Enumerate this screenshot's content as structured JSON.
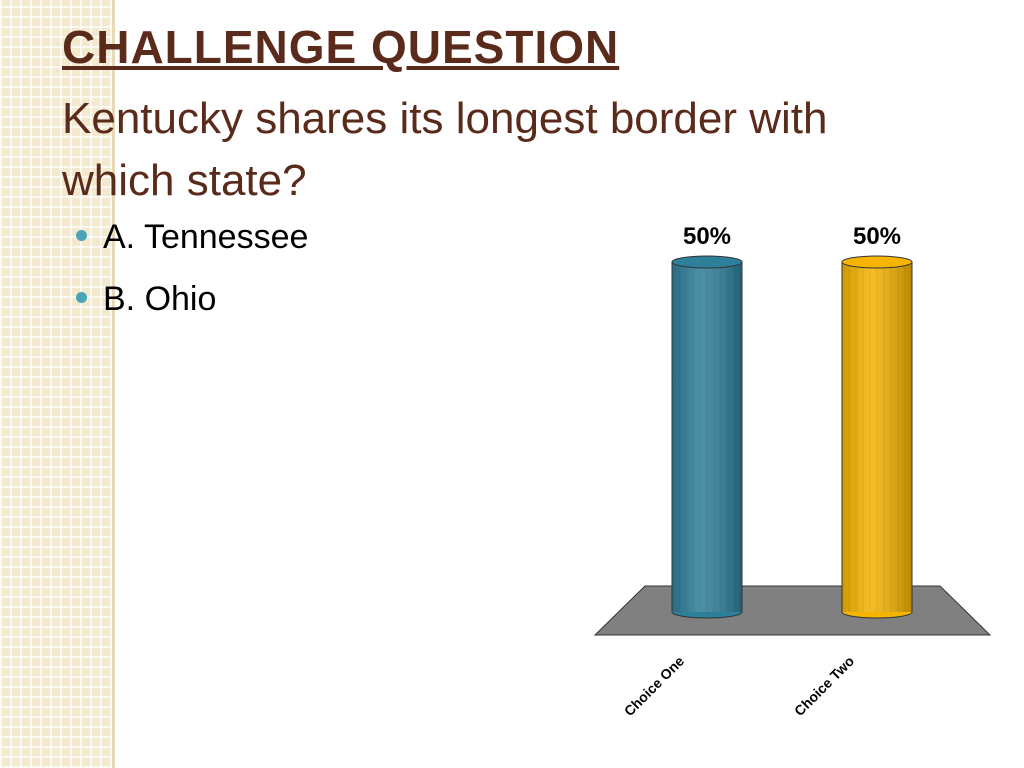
{
  "slide": {
    "title": "CHALLENGE QUESTION",
    "subtitle": "Kentucky shares its longest border with which state?",
    "bullets": [
      "A. Tennessee",
      "B.  Ohio"
    ]
  },
  "chart_data": {
    "type": "bar",
    "categories": [
      "Choice One",
      "Choice Two"
    ],
    "values": [
      50,
      50
    ],
    "value_labels": [
      "50%",
      "50%"
    ],
    "colors": [
      "#2e7f9a",
      "#f5b400"
    ]
  }
}
